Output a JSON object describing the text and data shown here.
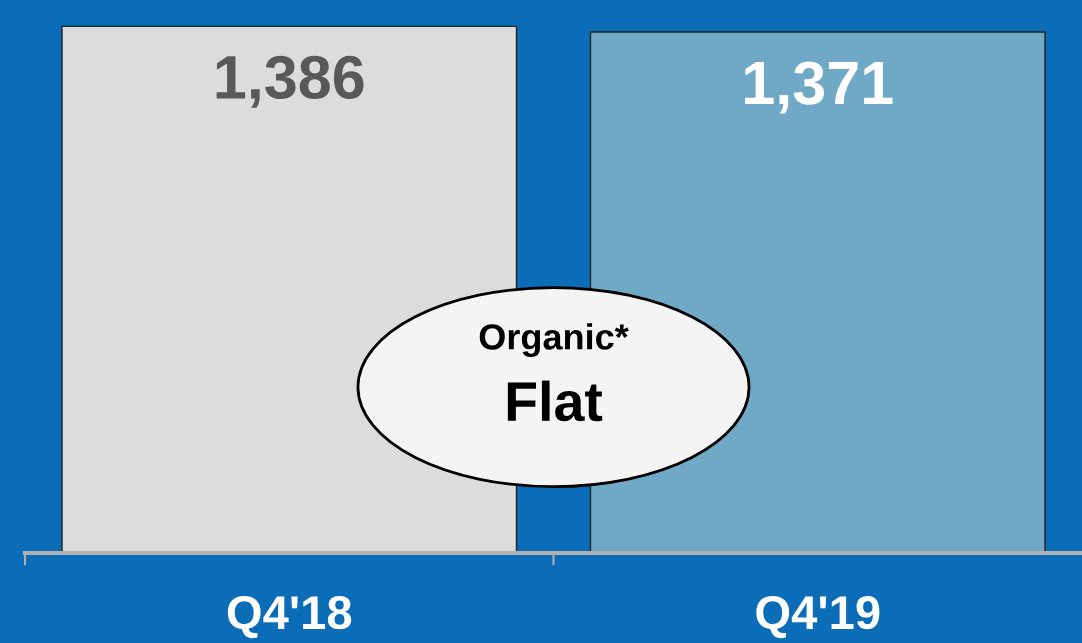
{
  "chart_data": {
    "type": "bar",
    "categories": [
      "Q4'18",
      "Q4'19"
    ],
    "values": [
      1386,
      1371
    ],
    "value_labels": [
      "1,386",
      "1,371"
    ],
    "colors": [
      "#dcdcdc",
      "#6fa9c6"
    ],
    "annotations": [
      "Organic*",
      "Flat"
    ]
  }
}
